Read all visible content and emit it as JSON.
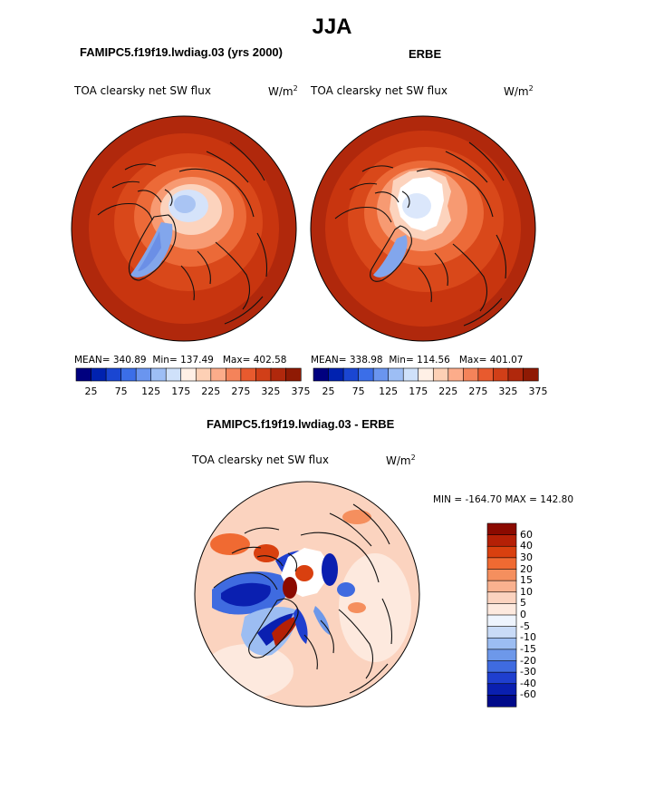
{
  "title": "JJA",
  "panels": {
    "model": {
      "header": "FAMIPC5.f19f19.lwdiag.03 (yrs 2000)",
      "variable": "TOA clearsky net SW flux",
      "units": "W/m",
      "units_sup": "2",
      "mean_label": "MEAN=",
      "mean": "340.89",
      "min_label": "Min=",
      "min": "137.49",
      "max_label": "Max=",
      "max": "402.58"
    },
    "obs": {
      "header": "ERBE",
      "variable": "TOA clearsky net SW flux",
      "units": "W/m",
      "units_sup": "2",
      "mean_label": "MEAN=",
      "mean": "338.98",
      "min_label": "Min=",
      "min": "114.56",
      "max_label": "Max=",
      "max": "401.07"
    },
    "diff": {
      "header": "FAMIPC5.f19f19.lwdiag.03 - ERBE",
      "variable": "TOA clearsky net SW flux",
      "units": "W/m",
      "units_sup": "2",
      "minmax": "MIN = -164.70 MAX = 142.80"
    }
  },
  "chart_data": [
    {
      "type": "heatmap",
      "projection": "north-polar-stereographic",
      "title": "FAMIPC5.f19f19.lwdiag.03 (yrs 2000)",
      "variable": "TOA clearsky net SW flux",
      "units": "W/m2",
      "stats": {
        "mean": 340.89,
        "min": 137.49,
        "max": 402.58
      },
      "colorbar_ticks": [
        "25",
        "75",
        "125",
        "175",
        "225",
        "275",
        "325",
        "375"
      ],
      "colorbar_colors": [
        "#00007f",
        "#0022b0",
        "#1a46d2",
        "#3b6ee8",
        "#6a95ef",
        "#9dbef5",
        "#cfe1fa",
        "#fff0e6",
        "#fdd0b5",
        "#fcac8a",
        "#f4835a",
        "#e85a2e",
        "#d13f18",
        "#b0280c",
        "#8f1a04"
      ]
    },
    {
      "type": "heatmap",
      "projection": "north-polar-stereographic",
      "title": "ERBE",
      "variable": "TOA clearsky net SW flux",
      "units": "W/m2",
      "stats": {
        "mean": 338.98,
        "min": 114.56,
        "max": 401.07
      },
      "colorbar_ticks": [
        "25",
        "75",
        "125",
        "175",
        "225",
        "275",
        "325",
        "375"
      ],
      "colorbar_colors": [
        "#00007f",
        "#0022b0",
        "#1a46d2",
        "#3b6ee8",
        "#6a95ef",
        "#9dbef5",
        "#cfe1fa",
        "#fff0e6",
        "#fdd0b5",
        "#fcac8a",
        "#f4835a",
        "#e85a2e",
        "#d13f18",
        "#b0280c",
        "#8f1a04"
      ]
    },
    {
      "type": "heatmap",
      "projection": "north-polar-stereographic",
      "title": "FAMIPC5.f19f19.lwdiag.03 - ERBE",
      "variable": "TOA clearsky net SW flux",
      "units": "W/m2",
      "stats": {
        "min": -164.7,
        "max": 142.8
      },
      "colorbar_ticks": [
        "60",
        "40",
        "30",
        "20",
        "15",
        "10",
        "5",
        "0",
        "-5",
        "-10",
        "-15",
        "-20",
        "-30",
        "-40",
        "-60"
      ],
      "colorbar_colors": [
        "#8b0a00",
        "#b52006",
        "#d9400f",
        "#f06a32",
        "#f58f5e",
        "#f9b18f",
        "#fbd3bf",
        "#fde9de",
        "#eef4fd",
        "#c9dbf7",
        "#9cbdf2",
        "#6d98ea",
        "#3f6be0",
        "#1f3fcf",
        "#0a1fb0",
        "#000a8a"
      ]
    }
  ]
}
